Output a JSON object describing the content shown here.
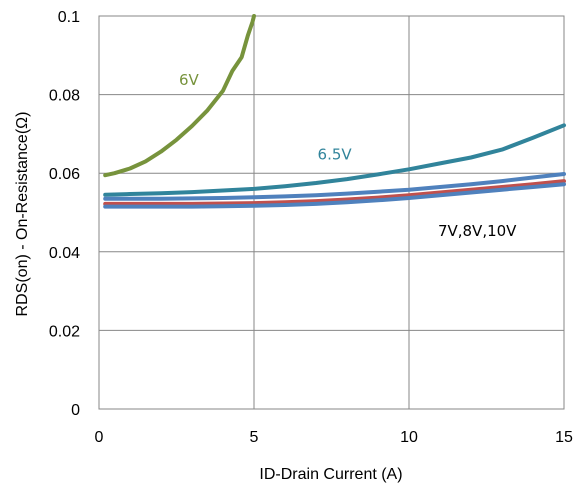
{
  "chart_data": {
    "type": "line",
    "title": "",
    "xlabel": "ID-Drain Current (A)",
    "ylabel": "RDS(on) - On-Resistance(Ω)",
    "xlim": [
      0,
      15
    ],
    "ylim": [
      0,
      0.1
    ],
    "x_ticks": [
      "0",
      "5",
      "10",
      "15"
    ],
    "y_ticks": [
      "0",
      "0.02",
      "0.04",
      "0.06",
      "0.08",
      "0.1"
    ],
    "grid": true,
    "series": [
      {
        "name": "6V",
        "color": "#77933c",
        "x": [
          0.2,
          0.5,
          1.0,
          1.5,
          2.0,
          2.5,
          3.0,
          3.5,
          4.0,
          4.3,
          4.6,
          4.8,
          4.95,
          5.0
        ],
        "y": [
          0.0595,
          0.06,
          0.0612,
          0.063,
          0.0655,
          0.0685,
          0.072,
          0.076,
          0.081,
          0.086,
          0.0895,
          0.095,
          0.0985,
          0.1
        ]
      },
      {
        "name": "6.5V",
        "color": "#31849b",
        "x": [
          0.2,
          1,
          2,
          3,
          4,
          5,
          6,
          7,
          8,
          9,
          10,
          11,
          12,
          13,
          14,
          15
        ],
        "y": [
          0.0545,
          0.0547,
          0.0549,
          0.0552,
          0.0556,
          0.056,
          0.0567,
          0.0575,
          0.0585,
          0.0597,
          0.061,
          0.0625,
          0.064,
          0.066,
          0.069,
          0.0722
        ]
      },
      {
        "name": "7V",
        "color": "#4f81bd",
        "x": [
          0.2,
          1,
          2,
          3,
          4,
          5,
          6,
          7,
          8,
          9,
          10,
          11,
          12,
          13,
          14,
          15
        ],
        "y": [
          0.0535,
          0.0535,
          0.0535,
          0.0536,
          0.0537,
          0.0539,
          0.0541,
          0.0544,
          0.0548,
          0.0553,
          0.0558,
          0.0565,
          0.0572,
          0.058,
          0.0589,
          0.0598
        ]
      },
      {
        "name": "8V",
        "color": "#c0504d",
        "x": [
          0.2,
          1,
          2,
          3,
          4,
          5,
          6,
          7,
          8,
          9,
          10,
          11,
          12,
          13,
          14,
          15
        ],
        "y": [
          0.0522,
          0.0522,
          0.0522,
          0.0522,
          0.0523,
          0.0524,
          0.0526,
          0.0529,
          0.0533,
          0.0538,
          0.0544,
          0.0551,
          0.0558,
          0.0565,
          0.0572,
          0.058
        ]
      },
      {
        "name": "10V",
        "color": "#4f81bd",
        "x": [
          0.2,
          1,
          2,
          3,
          4,
          5,
          6,
          7,
          8,
          9,
          10,
          11,
          12,
          13,
          14,
          15
        ],
        "y": [
          0.0515,
          0.0515,
          0.0515,
          0.0515,
          0.0516,
          0.0517,
          0.0519,
          0.0522,
          0.0526,
          0.0531,
          0.0537,
          0.0544,
          0.0551,
          0.0558,
          0.0565,
          0.0572
        ]
      }
    ],
    "annotations": [
      {
        "text": "6V",
        "x": 2.9,
        "y": 0.0825,
        "color": "#77933c"
      },
      {
        "text": "6.5V",
        "x": 7.6,
        "y": 0.0635,
        "color": "#31849b"
      },
      {
        "text": "7V,8V,10V",
        "x": 12.2,
        "y": 0.044,
        "color": "#000000"
      }
    ]
  }
}
